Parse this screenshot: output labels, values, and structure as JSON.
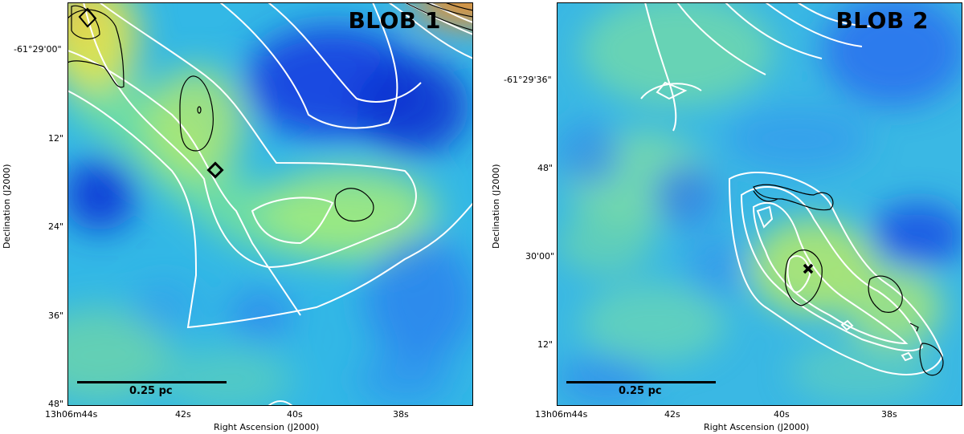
{
  "panels": [
    {
      "title": "BLOB 1",
      "xlabel": "Right Ascension (J2000)",
      "ylabel": "Declination (J2000)",
      "xticks": [
        "13h06m44s",
        "42s",
        "40s",
        "38s"
      ],
      "yticks": [
        "-61°29'00\"",
        "12\"",
        "24\"",
        "36\"",
        "48\""
      ],
      "scalebar_label": "0.25 pc",
      "marker": "diamond"
    },
    {
      "title": "BLOB 2",
      "xlabel": "Right Ascension (J2000)",
      "ylabel": "Declination (J2000)",
      "xticks": [
        "13h06m44s",
        "42s",
        "40s",
        "38s"
      ],
      "yticks": [
        "-61°29'36\"",
        "48\"",
        "30'00\"",
        "12\""
      ],
      "scalebar_label": "0.25 pc",
      "marker": "x"
    }
  ],
  "colors": {
    "contour_white": "#ffffff",
    "contour_black": "#000000",
    "colormap": [
      "#0000cc",
      "#1a5cff",
      "#33aaee",
      "#55ddcc",
      "#99ee88",
      "#ddee55",
      "#ffaa22",
      "#ff5500"
    ]
  }
}
